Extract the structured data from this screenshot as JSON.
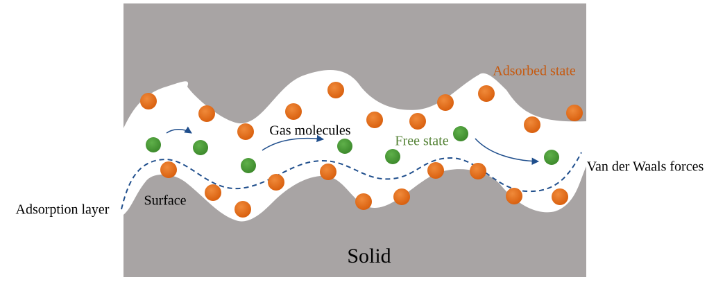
{
  "labels": {
    "adsorbed_state": "Adsorbed state",
    "gas_molecules": "Gas molecules",
    "free_state": "Free state",
    "van_der_waals": "Van der Waals forces",
    "adsorption_layer": "Adsorption layer",
    "surface": "Surface",
    "solid": "Solid"
  }
}
